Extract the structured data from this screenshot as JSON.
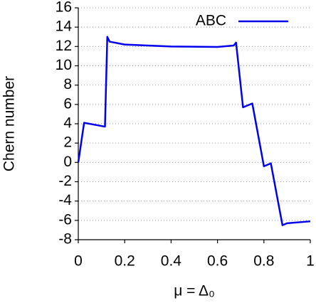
{
  "chart_data": {
    "type": "line",
    "xlabel": "μ = Δ₀",
    "ylabel": "Chern number",
    "x": [
      0,
      0.025,
      0.115,
      0.125,
      0.135,
      0.2,
      0.4,
      0.6,
      0.67,
      0.68,
      0.71,
      0.75,
      0.8,
      0.83,
      0.88,
      0.9,
      1.0
    ],
    "series": [
      {
        "name": "ABC",
        "color": "#0000ee",
        "values": [
          0,
          4.1,
          3.7,
          13.0,
          12.5,
          12.2,
          12.0,
          11.95,
          12.1,
          12.4,
          5.7,
          6.1,
          -0.4,
          -0.1,
          -6.5,
          -6.3,
          -6.1
        ]
      }
    ],
    "xlim": [
      0,
      1
    ],
    "xticks": [
      0,
      0.2,
      0.4,
      0.6,
      0.8,
      1
    ],
    "ylim": [
      -8,
      16
    ],
    "yticks": [
      -8,
      -6,
      -4,
      -2,
      0,
      2,
      4,
      6,
      8,
      10,
      12,
      14,
      16
    ],
    "grid": true,
    "legend": "upper-right"
  }
}
